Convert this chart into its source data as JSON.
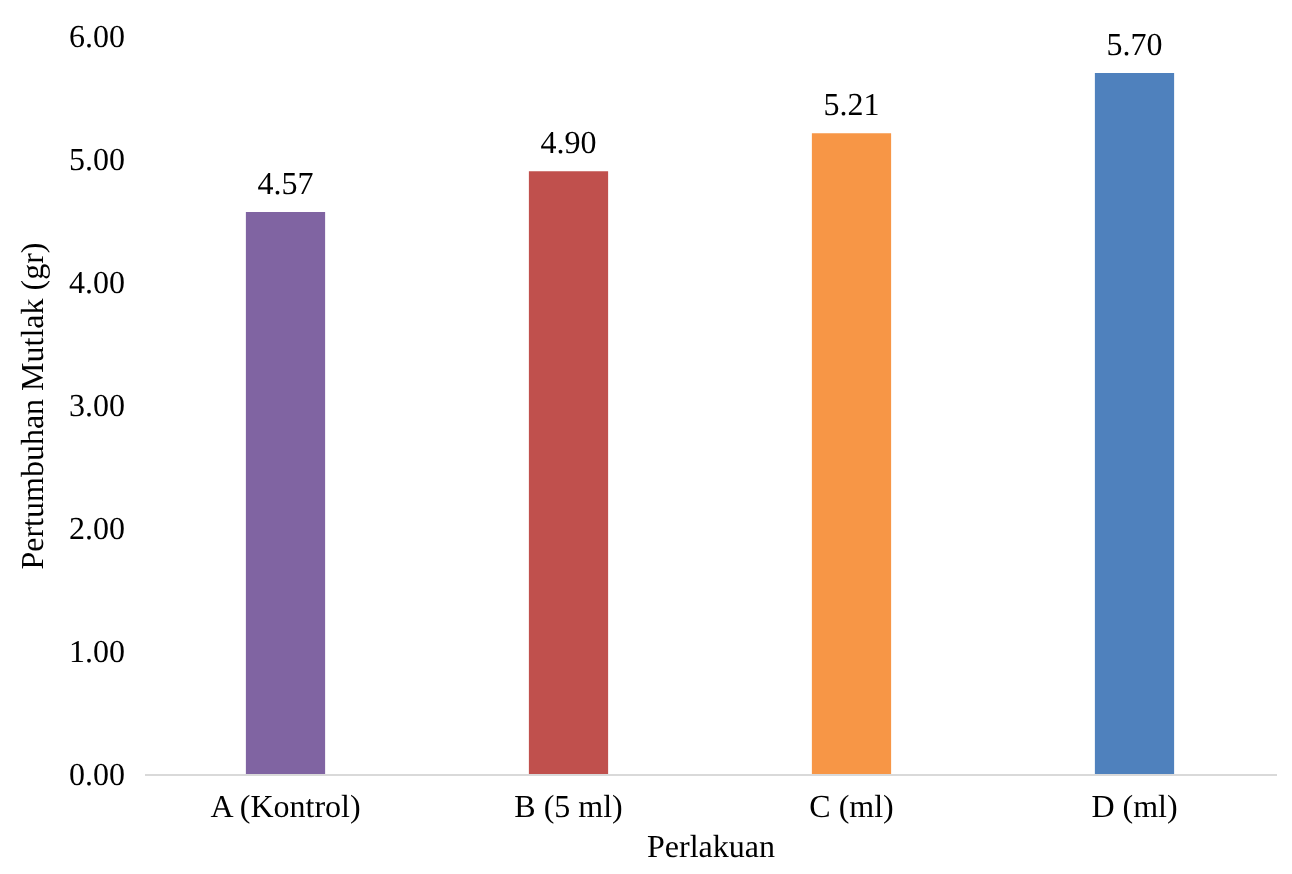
{
  "chart_data": {
    "type": "bar",
    "xlabel": "Perlakuan",
    "ylabel": "Pertumbuhan Mutlak (gr)",
    "categories": [
      "A (Kontrol)",
      "B (5 ml)",
      "C (ml)",
      "D (ml)"
    ],
    "values": [
      4.57,
      4.9,
      5.21,
      5.7
    ],
    "colors": [
      "#8064a2",
      "#c0504d",
      "#f79646",
      "#4f81bd"
    ],
    "value_labels": [
      "4.57",
      "4.90",
      "5.21",
      "5.70"
    ],
    "ylim": [
      0,
      6
    ],
    "yticks": [
      {
        "value": 0,
        "label": "0.00"
      },
      {
        "value": 1,
        "label": "1.00"
      },
      {
        "value": 2,
        "label": "2.00"
      },
      {
        "value": 3,
        "label": "3.00"
      },
      {
        "value": 4,
        "label": "4.00"
      },
      {
        "value": 5,
        "label": "5.00"
      },
      {
        "value": 6,
        "label": "6.00"
      }
    ],
    "grid": false,
    "legend": false
  }
}
